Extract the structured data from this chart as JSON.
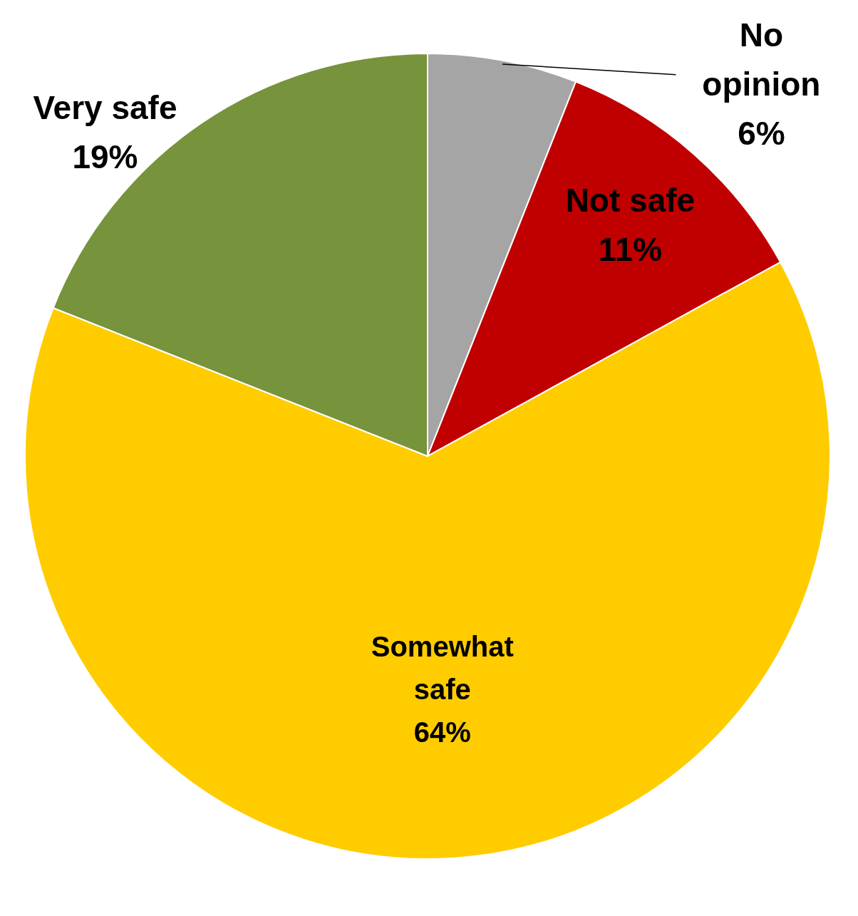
{
  "chart_data": {
    "type": "pie",
    "categories": [
      "No opinion",
      "Not safe",
      "Somewhat safe",
      "Very safe"
    ],
    "values": [
      6,
      11,
      64,
      19
    ],
    "colors": [
      "#a5a5a5",
      "#c00000",
      "#ffcc00",
      "#77933c"
    ],
    "value_labels": [
      "6%",
      "11%",
      "64%",
      "19%"
    ]
  }
}
